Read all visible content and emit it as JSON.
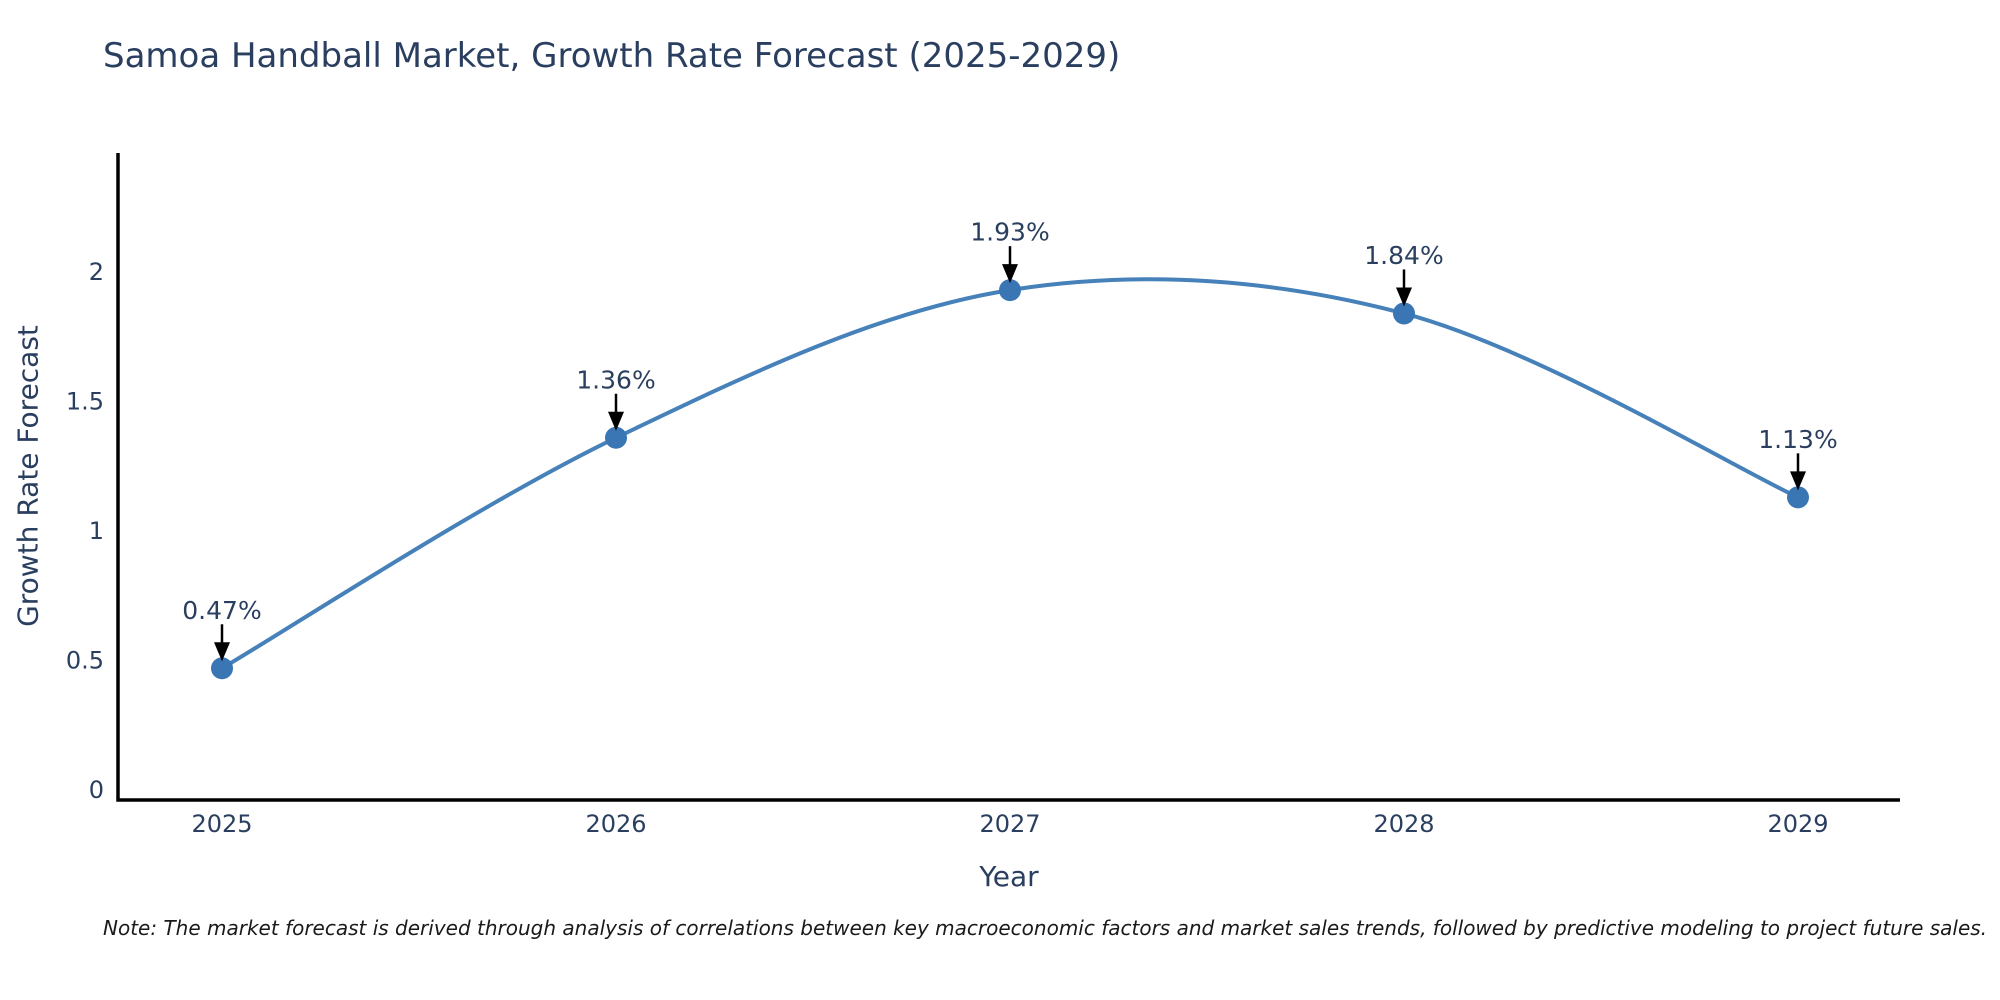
{
  "title": "Samoa Handball Market, Growth Rate Forecast (2025-2029)",
  "note": "Note: The market forecast is derived through analysis of correlations between key macroeconomic factors and market sales trends, followed by predictive modeling to project future sales.",
  "chart_data": {
    "type": "line",
    "title": "Samoa Handball Market, Growth Rate Forecast (2025-2029)",
    "xlabel": "Year",
    "ylabel": "Growth Rate Forecast",
    "x": [
      2025,
      2026,
      2027,
      2028,
      2029
    ],
    "xtick_labels": [
      "2025",
      "2026",
      "2027",
      "2028",
      "2029"
    ],
    "series": [
      {
        "name": "Growth Rate Forecast",
        "values": [
          0.47,
          1.36,
          1.93,
          1.84,
          1.13
        ]
      }
    ],
    "point_labels": [
      "0.47%",
      "1.36%",
      "1.93%",
      "1.84%",
      "1.13%"
    ],
    "yticks": [
      0,
      0.5,
      1,
      1.5,
      2
    ],
    "ytick_labels": [
      "0",
      "0.5",
      "1",
      "1.5",
      "2"
    ],
    "ylim": [
      -0.04,
      2.46
    ],
    "line_shape": "spline",
    "grid": false,
    "legend": "none",
    "colors": {
      "line": "#4681b9",
      "marker": "#3a76b4",
      "axis": "#000000",
      "text": "#2a3f5f",
      "annotation_arrow": "#000000",
      "note_text": "#1a1a1a"
    }
  }
}
